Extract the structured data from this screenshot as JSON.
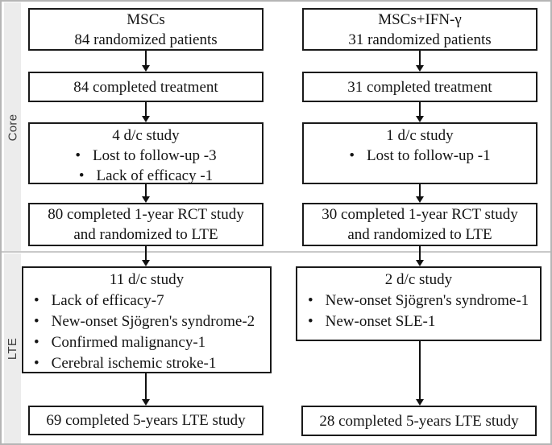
{
  "colors": {
    "box_border": "#1a1a1a",
    "text": "#141414",
    "strip_background": "#ececec",
    "divider": "#c9c9c9",
    "outer_border": "#b5b5b5"
  },
  "sections": [
    {
      "label": "Core"
    },
    {
      "label": "LTE"
    }
  ],
  "columns": [
    {
      "boxes": [
        {
          "lines": [
            "MSCs",
            "84 randomized patients"
          ]
        },
        {
          "lines": [
            "84 completed treatment"
          ]
        },
        {
          "lines": [
            "4 d/c study"
          ],
          "bullets": [
            "Lost to follow-up -3",
            "Lack of efficacy -1"
          ]
        },
        {
          "lines": [
            "80 completed 1-year RCT study",
            "and randomized to LTE"
          ]
        },
        {
          "lines": [
            "11 d/c study"
          ],
          "bullets": [
            "Lack of efficacy-7",
            "New-onset Sjögren's syndrome-2",
            "Confirmed malignancy-1",
            "Cerebral ischemic stroke-1"
          ]
        },
        {
          "lines": [
            "69 completed 5-years LTE study"
          ]
        }
      ]
    },
    {
      "boxes": [
        {
          "lines": [
            "MSCs+IFN-γ",
            "31 randomized patients"
          ]
        },
        {
          "lines": [
            "31 completed treatment"
          ]
        },
        {
          "lines": [
            "1 d/c study"
          ],
          "bullets": [
            "Lost to follow-up -1"
          ]
        },
        {
          "lines": [
            "30 completed 1-year RCT study",
            "and randomized to LTE"
          ]
        },
        {
          "lines": [
            "2 d/c study"
          ],
          "bullets": [
            "New-onset Sjögren's syndrome-1",
            "New-onset SLE-1"
          ]
        },
        {
          "lines": [
            "28 completed 5-years LTE study"
          ]
        }
      ]
    }
  ]
}
